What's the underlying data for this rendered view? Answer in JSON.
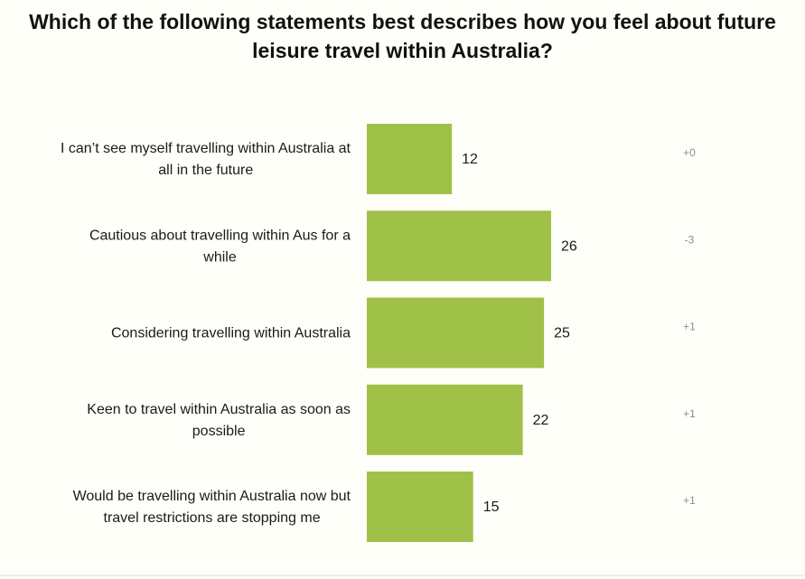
{
  "title": {
    "line1": "Which of the following statements best describes how you feel about future",
    "line2": "leisure travel within Australia?"
  },
  "colors": {
    "bar": "#a0c147",
    "change_text": "#8c8c8c",
    "background": "#fffff9"
  },
  "chart_data": {
    "type": "bar",
    "orientation": "horizontal",
    "title": "Which of the following statements best describes how you feel about future leisure travel within Australia?",
    "categories": [
      [
        "I can’t see myself travelling within Australia at",
        "all in the future"
      ],
      [
        "Cautious about travelling within Aus for a",
        "while"
      ],
      [
        "Considering travelling within Australia"
      ],
      [
        "Keen to travel within Australia as soon as",
        "possible"
      ],
      [
        "Would be travelling within Australia now but",
        "travel restrictions are stopping me"
      ]
    ],
    "values": [
      12,
      26,
      25,
      22,
      15
    ],
    "changes": [
      "+0",
      "-3",
      "+1",
      "+1",
      "+1"
    ],
    "xlim": [
      0,
      26
    ],
    "grid": false,
    "legend": "none"
  }
}
